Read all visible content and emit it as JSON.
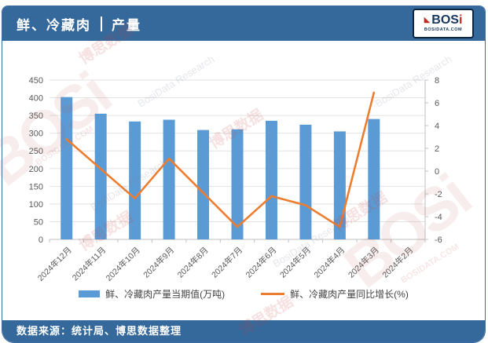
{
  "header": {
    "title_left": "鲜、冷藏肉",
    "title_right": "产量",
    "logo": {
      "brand": "BOS",
      "brand_i": "i",
      "accent": "◣",
      "site": "BOSIDATA.COM"
    }
  },
  "footer": {
    "source": "数据来源：统计局、博思数据整理"
  },
  "watermarks": {
    "brand": "BOSi",
    "cn": "博思数据",
    "en": "BosiData Research",
    "site": "BOSIDATA.COM"
  },
  "colors": {
    "header_bg": "#35689b",
    "bar": "#5b9bd5",
    "line": "#ed7d31",
    "grid": "#e2e2e2",
    "axis_line": "#bfbfbf",
    "axis_text": "#595959"
  },
  "chart_data": {
    "type": "bar",
    "subtype": "bar+line combo, dual axis",
    "categories": [
      "2024年12月",
      "2024年11月",
      "2024年10月",
      "2024年9月",
      "2024年8月",
      "2024年7月",
      "2024年6月",
      "2024年5月",
      "2024年4月",
      "2024年3月",
      "2024年2月"
    ],
    "series": [
      {
        "name": "鲜、冷藏肉产量当期值(万吨)",
        "type": "bar",
        "axis": "left",
        "values": [
          402,
          355,
          333,
          338,
          309,
          311,
          335,
          324,
          305,
          340,
          null
        ]
      },
      {
        "name": "鲜、冷藏肉产量同比增长(%)",
        "type": "line",
        "axis": "right",
        "values": [
          2.8,
          0.2,
          -2.4,
          1.1,
          -1.9,
          -4.9,
          -2.2,
          -3.0,
          -4.9,
          6.9,
          null
        ]
      }
    ],
    "left_axis": {
      "min": 0,
      "max": 450,
      "step": 50
    },
    "right_axis": {
      "min": -6,
      "max": 8,
      "step": 2
    },
    "grid": true,
    "legend_position": "bottom",
    "title": "鲜、冷藏肉 | 产量",
    "xlabel": "",
    "ylabel_left": "万吨",
    "ylabel_right": "%"
  }
}
